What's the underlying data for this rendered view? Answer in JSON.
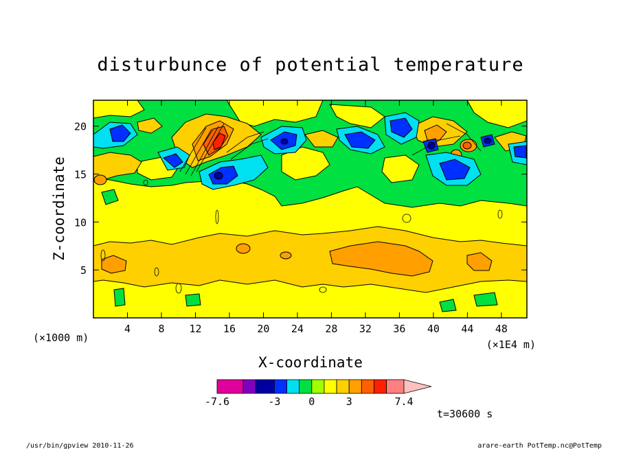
{
  "chart_data": {
    "type": "heatmap",
    "title": "disturbunce of potential temperature",
    "xlabel": "X-coordinate",
    "ylabel": "Z-coordinate",
    "x_scale_note": "(×1E4 m)",
    "y_scale_note": "(×1000 m)",
    "x_ticks": [
      4,
      8,
      12,
      16,
      20,
      24,
      28,
      32,
      36,
      40,
      44,
      48
    ],
    "y_ticks": [
      5,
      10,
      15,
      20
    ],
    "xlim": [
      0,
      51
    ],
    "ylim": [
      0,
      22.7
    ],
    "colorbar": {
      "min": -7.6,
      "max": 7.4,
      "tick_labels": [
        "-7.6",
        "-3",
        "0",
        "3",
        "7.4"
      ],
      "tick_values": [
        -7.6,
        -3,
        0,
        3,
        7.4
      ],
      "colors": [
        "#e0009c",
        "#8000c0",
        "#0000a0",
        "#0030ff",
        "#00e0f0",
        "#00e040",
        "#a0ff00",
        "#ffff00",
        "#ffd000",
        "#ffa000",
        "#ff6000",
        "#ff2000",
        "#ff8080"
      ]
    },
    "annotation": "t=30600 s",
    "footer_left": "/usr/bin/gpview   2010-11-26",
    "footer_right": "arare-earth_PotTemp.nc@PotTemp",
    "colors": {
      "background_field": "#ffff00",
      "cloud_layer": "#ffd000",
      "warm_core": "#ffa000",
      "green_band": "#00e040",
      "cyan": "#00e0f0",
      "blue": "#0030ff",
      "dark_blue": "#0000a0",
      "red": "#ff2000"
    }
  }
}
